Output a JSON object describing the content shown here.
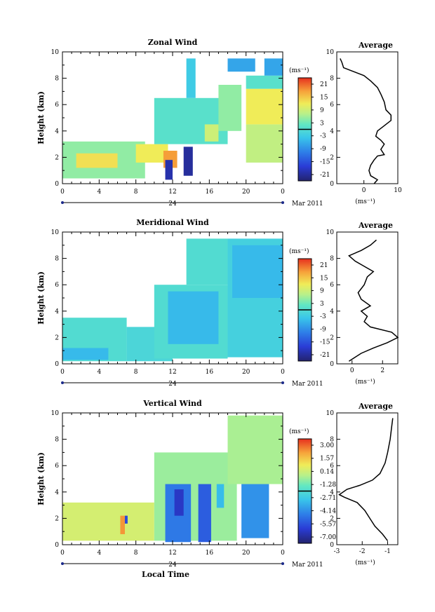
{
  "chart_data": [
    {
      "type": "heatmap",
      "title": "Zonal Wind",
      "ylabel": "Height (km)",
      "ylim": [
        0,
        10
      ],
      "x_ticks": [
        "0",
        "4",
        "8",
        "12",
        "16",
        "20",
        "0"
      ],
      "date_label": "24",
      "month_label": "Mar 2011",
      "colorbar": {
        "unit": "(ms⁻¹)",
        "ticks": [
          "21",
          "15",
          "9",
          "3",
          "-3",
          "-9",
          "-15",
          "-21"
        ]
      },
      "cells": [
        {
          "x0": 0,
          "x1": 9,
          "y0": 0.4,
          "y1": 3.2,
          "v": 5
        },
        {
          "x0": 1.5,
          "x1": 6,
          "y0": 1.2,
          "y1": 2.3,
          "v": 13
        },
        {
          "x0": 8,
          "x1": 11.5,
          "y0": 1.6,
          "y1": 3.0,
          "v": 12
        },
        {
          "x0": 11,
          "x1": 12.5,
          "y0": 1.2,
          "y1": 2.5,
          "v": 18
        },
        {
          "x0": 11.2,
          "x1": 12.0,
          "y0": 0.3,
          "y1": 1.8,
          "v": -20
        },
        {
          "x0": 13.2,
          "x1": 14.2,
          "y0": 0.6,
          "y1": 2.8,
          "v": -21
        },
        {
          "x0": 10,
          "x1": 18,
          "y0": 3.0,
          "y1": 6.5,
          "v": 1
        },
        {
          "x0": 13.5,
          "x1": 14.5,
          "y0": 6.5,
          "y1": 9.5,
          "v": -3
        },
        {
          "x0": 15.5,
          "x1": 17,
          "y0": 3.2,
          "y1": 4.5,
          "v": 9
        },
        {
          "x0": 17,
          "x1": 19.5,
          "y0": 4.0,
          "y1": 7.5,
          "v": 5
        },
        {
          "x0": 20,
          "x1": 24,
          "y0": 1.6,
          "y1": 4.5,
          "v": 8
        },
        {
          "x0": 20,
          "x1": 24,
          "y0": 4.5,
          "y1": 7.2,
          "v": 12
        },
        {
          "x0": 20,
          "x1": 24,
          "y0": 7.2,
          "y1": 8.2,
          "v": 1
        },
        {
          "x0": 18,
          "x1": 21,
          "y0": 8.5,
          "y1": 9.5,
          "v": -7
        },
        {
          "x0": 22,
          "x1": 24,
          "y0": 8.2,
          "y1": 9.5,
          "v": -7
        }
      ]
    },
    {
      "type": "heatmap",
      "title": "Meridional Wind",
      "ylabel": "Height (km)",
      "ylim": [
        0,
        10
      ],
      "x_ticks": [
        "0",
        "4",
        "8",
        "12",
        "16",
        "20",
        "0"
      ],
      "date_label": "24",
      "month_label": "Mar 2011",
      "colorbar": {
        "unit": "(ms⁻¹)",
        "ticks": [
          "21",
          "15",
          "9",
          "3",
          "-3",
          "-9",
          "-15",
          "-21"
        ]
      },
      "cells": [
        {
          "x0": 0,
          "x1": 7,
          "y0": 0.2,
          "y1": 3.5,
          "v": 0
        },
        {
          "x0": 0,
          "x1": 5,
          "y0": 0.3,
          "y1": 1.2,
          "v": -5
        },
        {
          "x0": 7,
          "x1": 12,
          "y0": 0.2,
          "y1": 2.8,
          "v": -1
        },
        {
          "x0": 10,
          "x1": 18,
          "y0": 0.4,
          "y1": 6.0,
          "v": 0
        },
        {
          "x0": 11.5,
          "x1": 17,
          "y0": 1.5,
          "y1": 5.5,
          "v": -5
        },
        {
          "x0": 13.5,
          "x1": 18,
          "y0": 6.0,
          "y1": 9.5,
          "v": 0
        },
        {
          "x0": 18,
          "x1": 24,
          "y0": 0.5,
          "y1": 9.5,
          "v": -2
        },
        {
          "x0": 18.5,
          "x1": 24,
          "y0": 5.0,
          "y1": 9.0,
          "v": -5
        }
      ]
    },
    {
      "type": "heatmap",
      "title": "Vertical Wind",
      "ylabel": "Height (km)",
      "xlabel": "Local Time",
      "ylim": [
        0,
        10
      ],
      "x_ticks": [
        "0",
        "4",
        "8",
        "12",
        "16",
        "20",
        "0"
      ],
      "date_label": "24",
      "month_label": "Mar 2011",
      "colorbar": {
        "unit": "(ms⁻¹)",
        "ticks": [
          "3.00",
          "1.57",
          "0.14",
          "-1.28",
          "-2.71",
          "-4.14",
          "-5.57",
          "-7.00"
        ]
      },
      "cells": [
        {
          "x0": 0,
          "x1": 10,
          "y0": 0.3,
          "y1": 3.2,
          "v": 0.4
        },
        {
          "x0": 6.3,
          "x1": 6.8,
          "y0": 0.8,
          "y1": 2.2,
          "v": 2.6
        },
        {
          "x0": 6.8,
          "x1": 7.1,
          "y0": 1.6,
          "y1": 2.2,
          "v": -6
        },
        {
          "x0": 10,
          "x1": 19,
          "y0": 0.3,
          "y1": 7.0,
          "v": -0.6
        },
        {
          "x0": 11.2,
          "x1": 14.0,
          "y0": 0.2,
          "y1": 4.6,
          "v": -4.8
        },
        {
          "x0": 12.2,
          "x1": 13.2,
          "y0": 2.2,
          "y1": 4.2,
          "v": -6.6
        },
        {
          "x0": 14.8,
          "x1": 16.2,
          "y0": 0.2,
          "y1": 4.6,
          "v": -5.5
        },
        {
          "x0": 16.8,
          "x1": 17.6,
          "y0": 2.8,
          "y1": 4.6,
          "v": -3.2
        },
        {
          "x0": 19.5,
          "x1": 22.5,
          "y0": 0.5,
          "y1": 4.6,
          "v": -4.2
        },
        {
          "x0": 18,
          "x1": 24,
          "y0": 4.6,
          "y1": 9.8,
          "v": -0.4
        }
      ]
    },
    {
      "type": "line",
      "title": "Average",
      "xlabel": "(ms⁻¹)",
      "xlim": [
        -8,
        10
      ],
      "x_ticks": [
        0,
        10
      ],
      "ylim": [
        0,
        10
      ],
      "y_ticks": [
        0,
        2,
        4,
        6,
        8,
        10
      ],
      "points": [
        [
          3,
          0
        ],
        [
          4,
          0.3
        ],
        [
          2,
          0.6
        ],
        [
          1.5,
          1.0
        ],
        [
          2,
          1.4
        ],
        [
          3,
          1.8
        ],
        [
          4,
          2.1
        ],
        [
          6,
          2.2
        ],
        [
          5,
          2.6
        ],
        [
          6,
          3.0
        ],
        [
          5,
          3.3
        ],
        [
          3.5,
          3.6
        ],
        [
          4,
          4.0
        ],
        [
          6,
          4.4
        ],
        [
          8,
          4.8
        ],
        [
          8,
          5.2
        ],
        [
          6.5,
          5.6
        ],
        [
          6,
          6.2
        ],
        [
          5,
          6.8
        ],
        [
          4,
          7.3
        ],
        [
          2,
          7.8
        ],
        [
          0,
          8.2
        ],
        [
          -2,
          8.4
        ],
        [
          -4,
          8.6
        ],
        [
          -6,
          8.8
        ],
        [
          -6.5,
          9.2
        ],
        [
          -7,
          9.5
        ]
      ]
    },
    {
      "type": "line",
      "title": "Average",
      "xlabel": "(ms⁻¹)",
      "xlim": [
        -1,
        3
      ],
      "x_ticks": [
        0,
        2
      ],
      "ylim": [
        0,
        10
      ],
      "y_ticks": [
        0,
        2,
        4,
        6,
        8,
        10
      ],
      "points": [
        [
          -0.2,
          0.2
        ],
        [
          0.6,
          0.8
        ],
        [
          1.4,
          1.2
        ],
        [
          2.3,
          1.6
        ],
        [
          3,
          2.0
        ],
        [
          2.6,
          2.4
        ],
        [
          1.2,
          2.8
        ],
        [
          0.8,
          3.2
        ],
        [
          1.0,
          3.6
        ],
        [
          0.6,
          4.0
        ],
        [
          1.2,
          4.4
        ],
        [
          0.6,
          4.9
        ],
        [
          0.4,
          5.4
        ],
        [
          0.8,
          6.0
        ],
        [
          1.0,
          6.6
        ],
        [
          1.4,
          7.0
        ],
        [
          0.8,
          7.4
        ],
        [
          0.2,
          7.8
        ],
        [
          -0.2,
          8.2
        ],
        [
          0.6,
          8.6
        ],
        [
          1.2,
          9.0
        ],
        [
          1.6,
          9.4
        ]
      ]
    },
    {
      "type": "line",
      "title": "Average",
      "xlabel": "(ms⁻¹)",
      "xlim": [
        -3,
        -0.6
      ],
      "x_ticks": [
        -3,
        -2,
        -1
      ],
      "ylim": [
        0,
        10
      ],
      "y_ticks": [
        0,
        2,
        4,
        6,
        8,
        10
      ],
      "points": [
        [
          -1.0,
          0.3
        ],
        [
          -1.2,
          0.8
        ],
        [
          -1.5,
          1.4
        ],
        [
          -1.7,
          2.0
        ],
        [
          -1.9,
          2.6
        ],
        [
          -2.2,
          3.2
        ],
        [
          -2.7,
          3.6
        ],
        [
          -2.9,
          3.8
        ],
        [
          -2.6,
          4.2
        ],
        [
          -2.1,
          4.5
        ],
        [
          -1.6,
          4.9
        ],
        [
          -1.3,
          5.4
        ],
        [
          -1.1,
          6.2
        ],
        [
          -1.0,
          7.0
        ],
        [
          -0.9,
          8.0
        ],
        [
          -0.85,
          8.8
        ],
        [
          -0.8,
          9.6
        ]
      ]
    }
  ]
}
